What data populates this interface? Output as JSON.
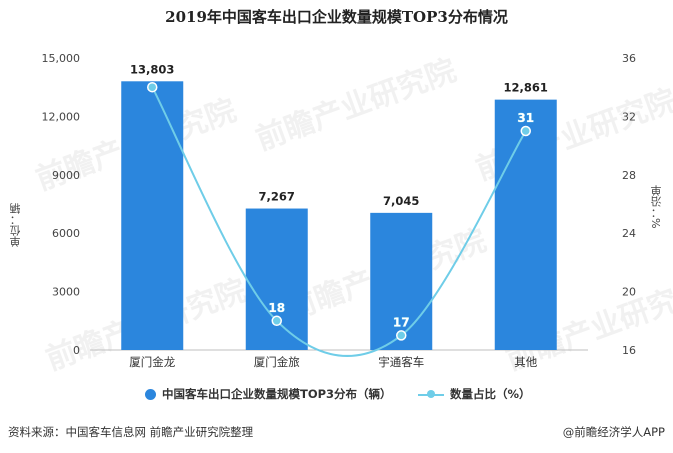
{
  "chart_data": {
    "type": "bar",
    "title": "2019年中国客车出口企业数量规模TOP3分布情况",
    "categories": [
      "厦门金龙",
      "厦门金旅",
      "宇通客车",
      "其他"
    ],
    "series": [
      {
        "name": "中国客车出口企业数量规模TOP3分布（辆）",
        "type": "bar",
        "axis": "left",
        "values": [
          13803,
          7267,
          7045,
          12861
        ],
        "labels": [
          "13,803",
          "7,267",
          "7,045",
          "12,861"
        ],
        "color": "#2b86dd"
      },
      {
        "name": "数量占比（%）",
        "type": "line",
        "axis": "right",
        "values": [
          34,
          18,
          17,
          31
        ],
        "labels": [
          "",
          "18",
          "17",
          "31"
        ],
        "color": "#6fcde8"
      }
    ],
    "ylabel": "单位：辆",
    "ylabel_right": "%：沿单",
    "ylim": [
      0,
      15000
    ],
    "yticks": [
      "0",
      "3000",
      "6000",
      "9000",
      "12,000",
      "15,000"
    ],
    "ylim_right": [
      16,
      36
    ],
    "yticks_right": [
      "16",
      "20",
      "24",
      "28",
      "32",
      "36"
    ],
    "legend_position": "bottom",
    "grid": false
  },
  "footer": {
    "source": "资料来源：中国客车信息网 前瞻产业研究院整理",
    "brand": "@前瞻经济学人APP"
  },
  "watermark": "前瞻产业研究院"
}
